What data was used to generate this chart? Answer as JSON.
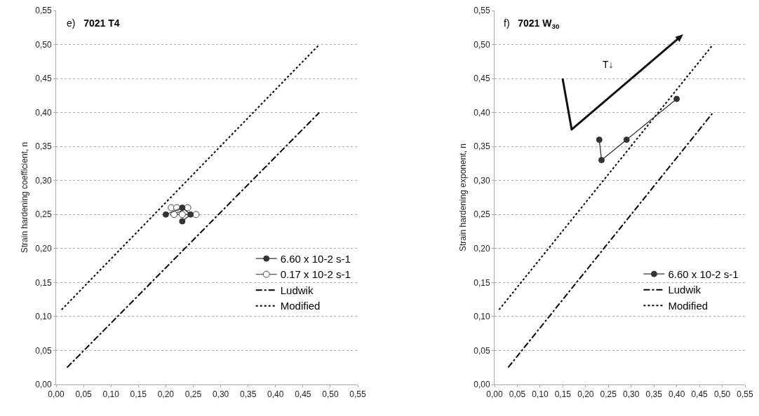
{
  "chart_data": [
    {
      "type": "line",
      "title": "e)  7021 T4",
      "ylabel": "Strain hardening coefficient, n",
      "xlim": [
        0,
        0.55
      ],
      "ylim": [
        0,
        0.55
      ],
      "xticks": [
        {
          "value": 0,
          "label": "0,00"
        },
        {
          "value": 0.05,
          "label": "0,05"
        },
        {
          "value": 0.1,
          "label": "0,10"
        },
        {
          "value": 0.15,
          "label": "0,15"
        },
        {
          "value": 0.2,
          "label": "0,20"
        },
        {
          "value": 0.25,
          "label": "0,25"
        },
        {
          "value": 0.3,
          "label": "0,30"
        },
        {
          "value": 0.35,
          "label": "0,35"
        },
        {
          "value": 0.4,
          "label": "0,40"
        },
        {
          "value": 0.45,
          "label": "0,45"
        },
        {
          "value": 0.5,
          "label": "0,50"
        },
        {
          "value": 0.55,
          "label": "0,55"
        }
      ],
      "yticks": [
        {
          "value": 0,
          "label": "0,00"
        },
        {
          "value": 0.05,
          "label": "0,05"
        },
        {
          "value": 0.1,
          "label": "0,10"
        },
        {
          "value": 0.15,
          "label": "0,15"
        },
        {
          "value": 0.2,
          "label": "0,20"
        },
        {
          "value": 0.25,
          "label": "0,25"
        },
        {
          "value": 0.3,
          "label": "0,30"
        },
        {
          "value": 0.35,
          "label": "0,35"
        },
        {
          "value": 0.4,
          "label": "0,40"
        },
        {
          "value": 0.45,
          "label": "0,45"
        },
        {
          "value": 0.5,
          "label": "0,50"
        },
        {
          "value": 0.55,
          "label": "0,55"
        }
      ],
      "grid": "y",
      "legend": "bottom right",
      "series": [
        {
          "name": "6.60 x 10-2 s-1",
          "color": "#333333",
          "marker": "circle",
          "line_style": "solid",
          "x": [
            0.2,
            0.23,
            0.245,
            0.23
          ],
          "values": [
            0.25,
            0.26,
            0.25,
            0.24
          ]
        },
        {
          "name": "0.17 x 10-2 s-1",
          "color": "#ffffff",
          "marker": "circle",
          "line_style": "solid",
          "x": [
            0.21,
            0.22,
            0.24,
            0.215,
            0.23,
            0.255
          ],
          "values": [
            0.26,
            0.26,
            0.26,
            0.25,
            0.25,
            0.25
          ]
        },
        {
          "name": "Ludwik",
          "color": "#000000",
          "marker": "none",
          "line_style": "dashdot",
          "x": [
            0.02,
            0.48
          ],
          "values": [
            0.025,
            0.4
          ]
        },
        {
          "name": "Modified",
          "color": "#000000",
          "marker": "none",
          "line_style": "dotted",
          "x": [
            0.01,
            0.48
          ],
          "values": [
            0.11,
            0.5
          ]
        }
      ]
    },
    {
      "type": "line",
      "title": "f)  7021 W$_{30}$",
      "ylabel": "Strain hardening exponent, n",
      "xlim": [
        0,
        0.55
      ],
      "ylim": [
        0,
        0.55
      ],
      "xticks": [
        {
          "value": 0,
          "label": "0,00"
        },
        {
          "value": 0.05,
          "label": "0,05"
        },
        {
          "value": 0.1,
          "label": "0,10"
        },
        {
          "value": 0.15,
          "label": "0,15"
        },
        {
          "value": 0.2,
          "label": "0,20"
        },
        {
          "value": 0.25,
          "label": "0,25"
        },
        {
          "value": 0.3,
          "label": "0,30"
        },
        {
          "value": 0.35,
          "label": "0,35"
        },
        {
          "value": 0.4,
          "label": "0,40"
        },
        {
          "value": 0.45,
          "label": "0,45"
        },
        {
          "value": 0.5,
          "label": "0,50"
        },
        {
          "value": 0.55,
          "label": "0,55"
        }
      ],
      "yticks": [
        {
          "value": 0,
          "label": "0,00"
        },
        {
          "value": 0.05,
          "label": "0,05"
        },
        {
          "value": 0.1,
          "label": "0,10"
        },
        {
          "value": 0.15,
          "label": "0,15"
        },
        {
          "value": 0.2,
          "label": "0,20"
        },
        {
          "value": 0.25,
          "label": "0,25"
        },
        {
          "value": 0.3,
          "label": "0,30"
        },
        {
          "value": 0.35,
          "label": "0,35"
        },
        {
          "value": 0.4,
          "label": "0,40"
        },
        {
          "value": 0.45,
          "label": "0,45"
        },
        {
          "value": 0.5,
          "label": "0,50"
        },
        {
          "value": 0.55,
          "label": "0,55"
        }
      ],
      "grid": "y",
      "legend": "bottom right",
      "annotations": [
        "T↓"
      ],
      "series": [
        {
          "name": "6.60 x 10-2 s-1",
          "color": "#333333",
          "marker": "circle",
          "line_style": "solid",
          "x": [
            0.23,
            0.235,
            0.29,
            0.4
          ],
          "values": [
            0.36,
            0.33,
            0.36,
            0.42
          ]
        },
        {
          "name": "Ludwik",
          "color": "#000000",
          "marker": "none",
          "line_style": "dashdot",
          "x": [
            0.03,
            0.48
          ],
          "values": [
            0.025,
            0.4
          ]
        },
        {
          "name": "Modified",
          "color": "#000000",
          "marker": "none",
          "line_style": "dotted",
          "x": [
            0.01,
            0.48
          ],
          "values": [
            0.11,
            0.5
          ]
        }
      ]
    }
  ]
}
